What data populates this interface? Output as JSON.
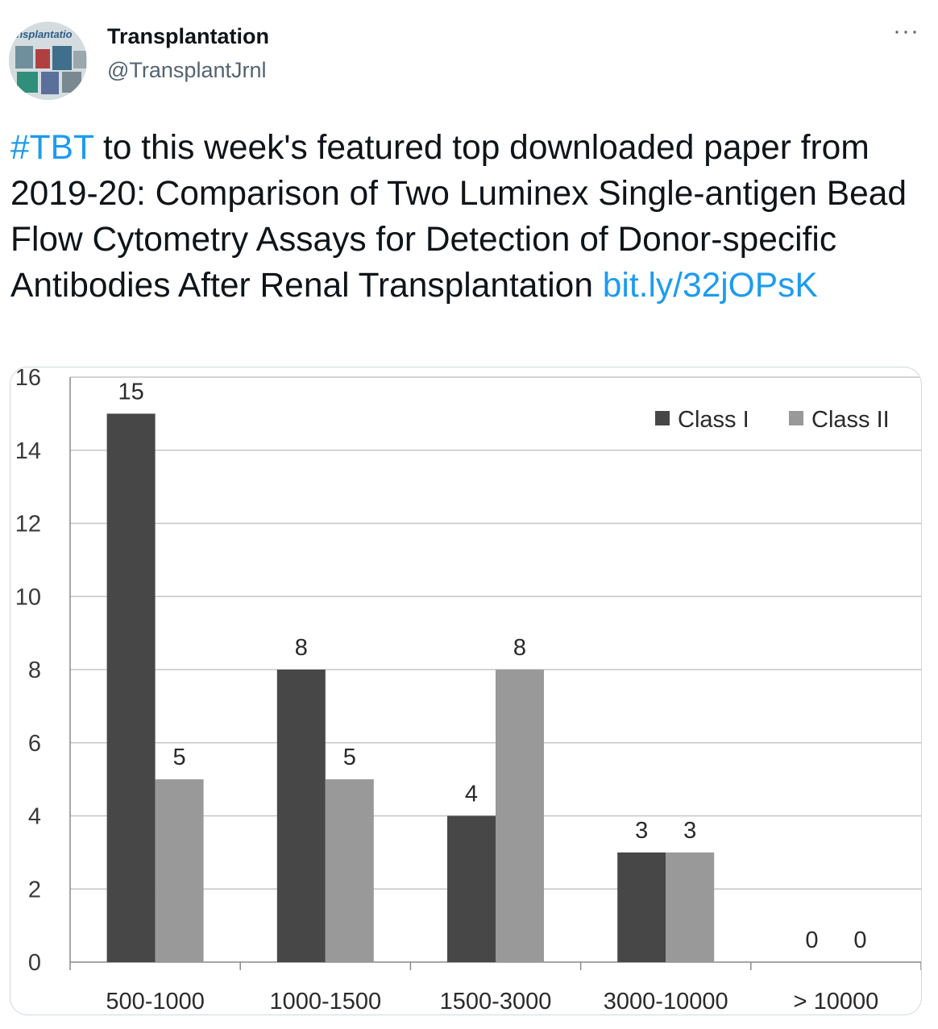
{
  "tweet": {
    "display_name": "Transplantation",
    "handle": "@TransplantJrnl",
    "avatar_label": "ansplantatio",
    "more_label": "···",
    "hashtag": "#TBT",
    "text_body": " to this week's featured top downloaded paper from 2019-20: Comparison of Two Luminex Single-antigen Bead Flow Cytometry Assays for Detection of Donor-specific Antibodies After Renal Transplantation ",
    "link_text": "bit.ly/32jOPsK"
  },
  "chart_data": {
    "type": "bar",
    "categories": [
      "500-1000",
      "1000-1500",
      "1500-3000",
      "3000-10000",
      "> 10000"
    ],
    "series": [
      {
        "name": "Class   I",
        "values": [
          15,
          8,
          4,
          3,
          0
        ],
        "color": "#474747"
      },
      {
        "name": "Class II",
        "values": [
          5,
          5,
          8,
          3,
          0
        ],
        "color": "#999999"
      }
    ],
    "yticks": [
      0,
      2,
      4,
      6,
      8,
      10,
      12,
      14,
      16
    ],
    "ylim": [
      0,
      16
    ],
    "grid": true,
    "legend": "top-right",
    "data_labels": true,
    "title": "",
    "xlabel": "",
    "ylabel": ""
  }
}
